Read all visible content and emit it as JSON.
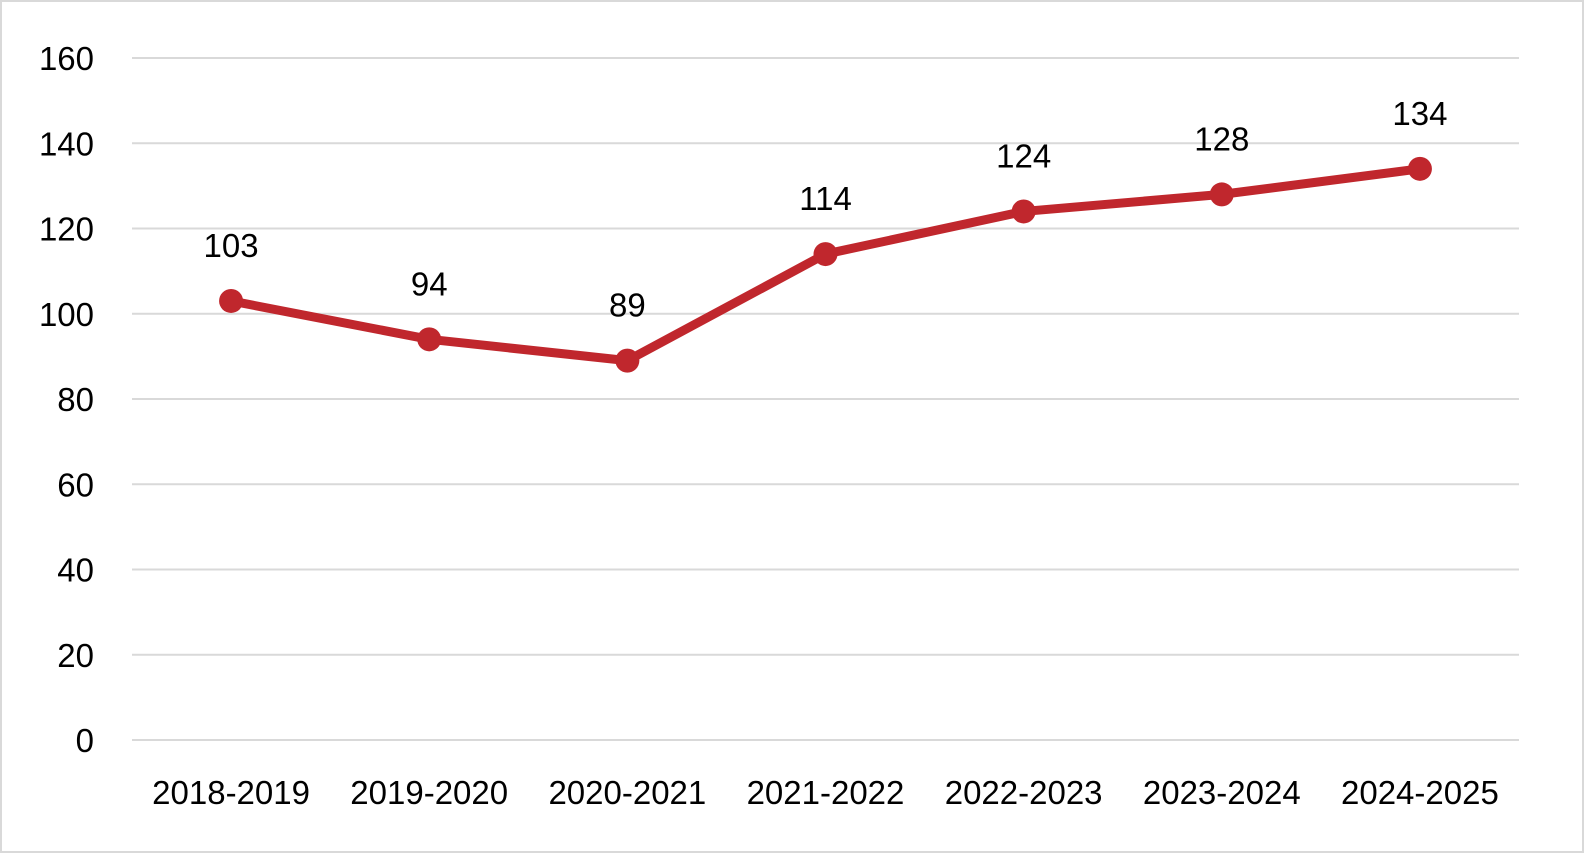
{
  "chart_data": {
    "type": "line",
    "categories": [
      "2018-2019",
      "2019-2020",
      "2020-2021",
      "2021-2022",
      "2022-2023",
      "2023-2024",
      "2024-2025"
    ],
    "series": [
      {
        "values": [
          103,
          94,
          89,
          114,
          124,
          128,
          134
        ],
        "color": "#c0272d"
      }
    ],
    "data_labels": [
      "103",
      "94",
      "89",
      "114",
      "124",
      "128",
      "134"
    ],
    "y_ticks": [
      "0",
      "20",
      "40",
      "60",
      "80",
      "100",
      "120",
      "140",
      "160"
    ],
    "ylim": [
      0,
      160
    ],
    "grid": true,
    "legend": "none",
    "gridline_color": "#d9d9d9"
  }
}
